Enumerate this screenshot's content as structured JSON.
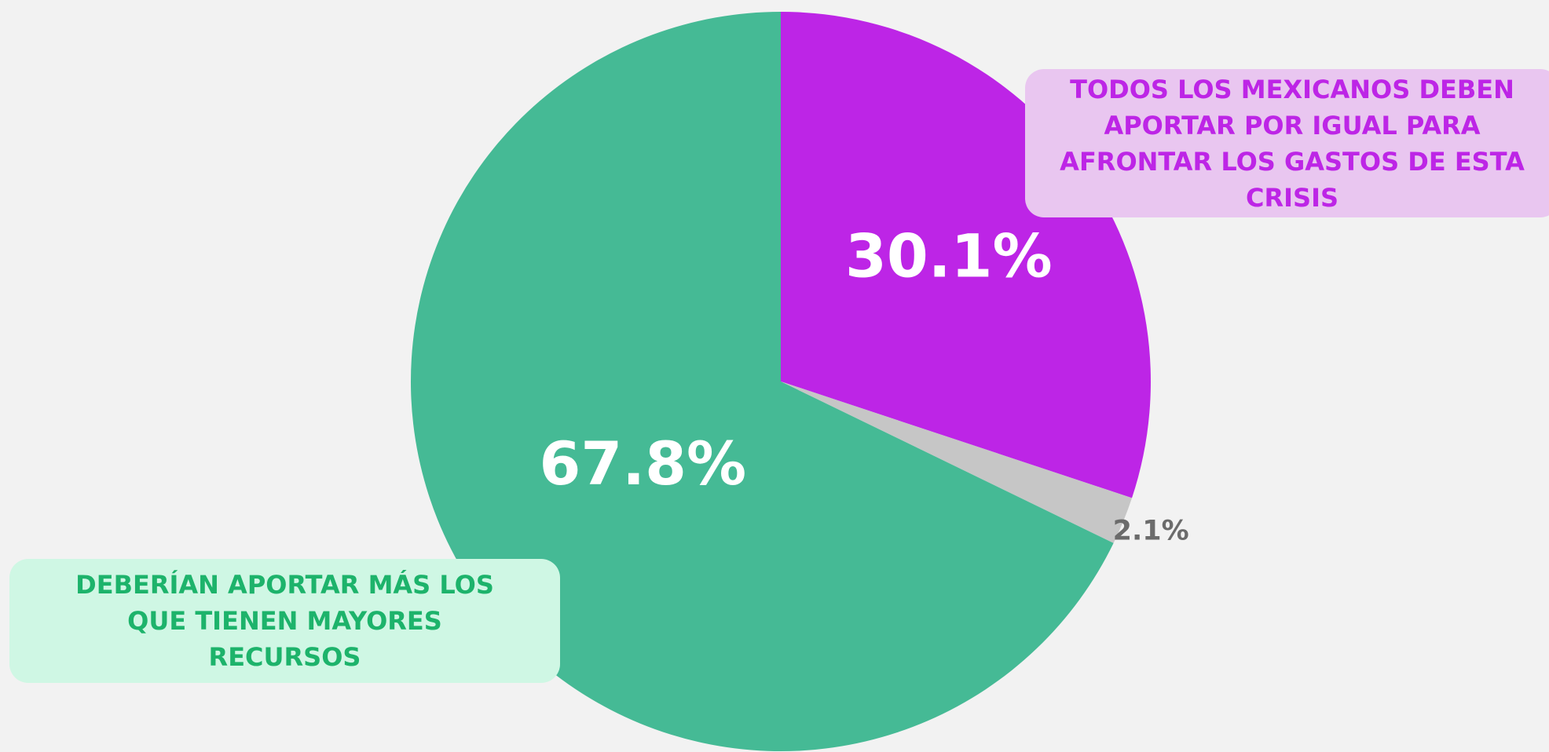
{
  "chart_data": {
    "type": "pie",
    "categories": [
      "TODOS LOS MEXICANOS DEBEN APORTAR POR IGUAL PARA AFRONTAR LOS GASTOS DE ESTA CRISIS",
      null,
      "DEBERÍAN APORTAR MÁS LOS QUE TIENEN MAYORES RECURSOS"
    ],
    "values": [
      30.1,
      2.1,
      67.8
    ],
    "value_labels": [
      "30.1%",
      "2.1%",
      "67.8%"
    ],
    "colors": [
      "#bd25e6",
      "#c6c6c6",
      "#45ba95"
    ]
  }
}
